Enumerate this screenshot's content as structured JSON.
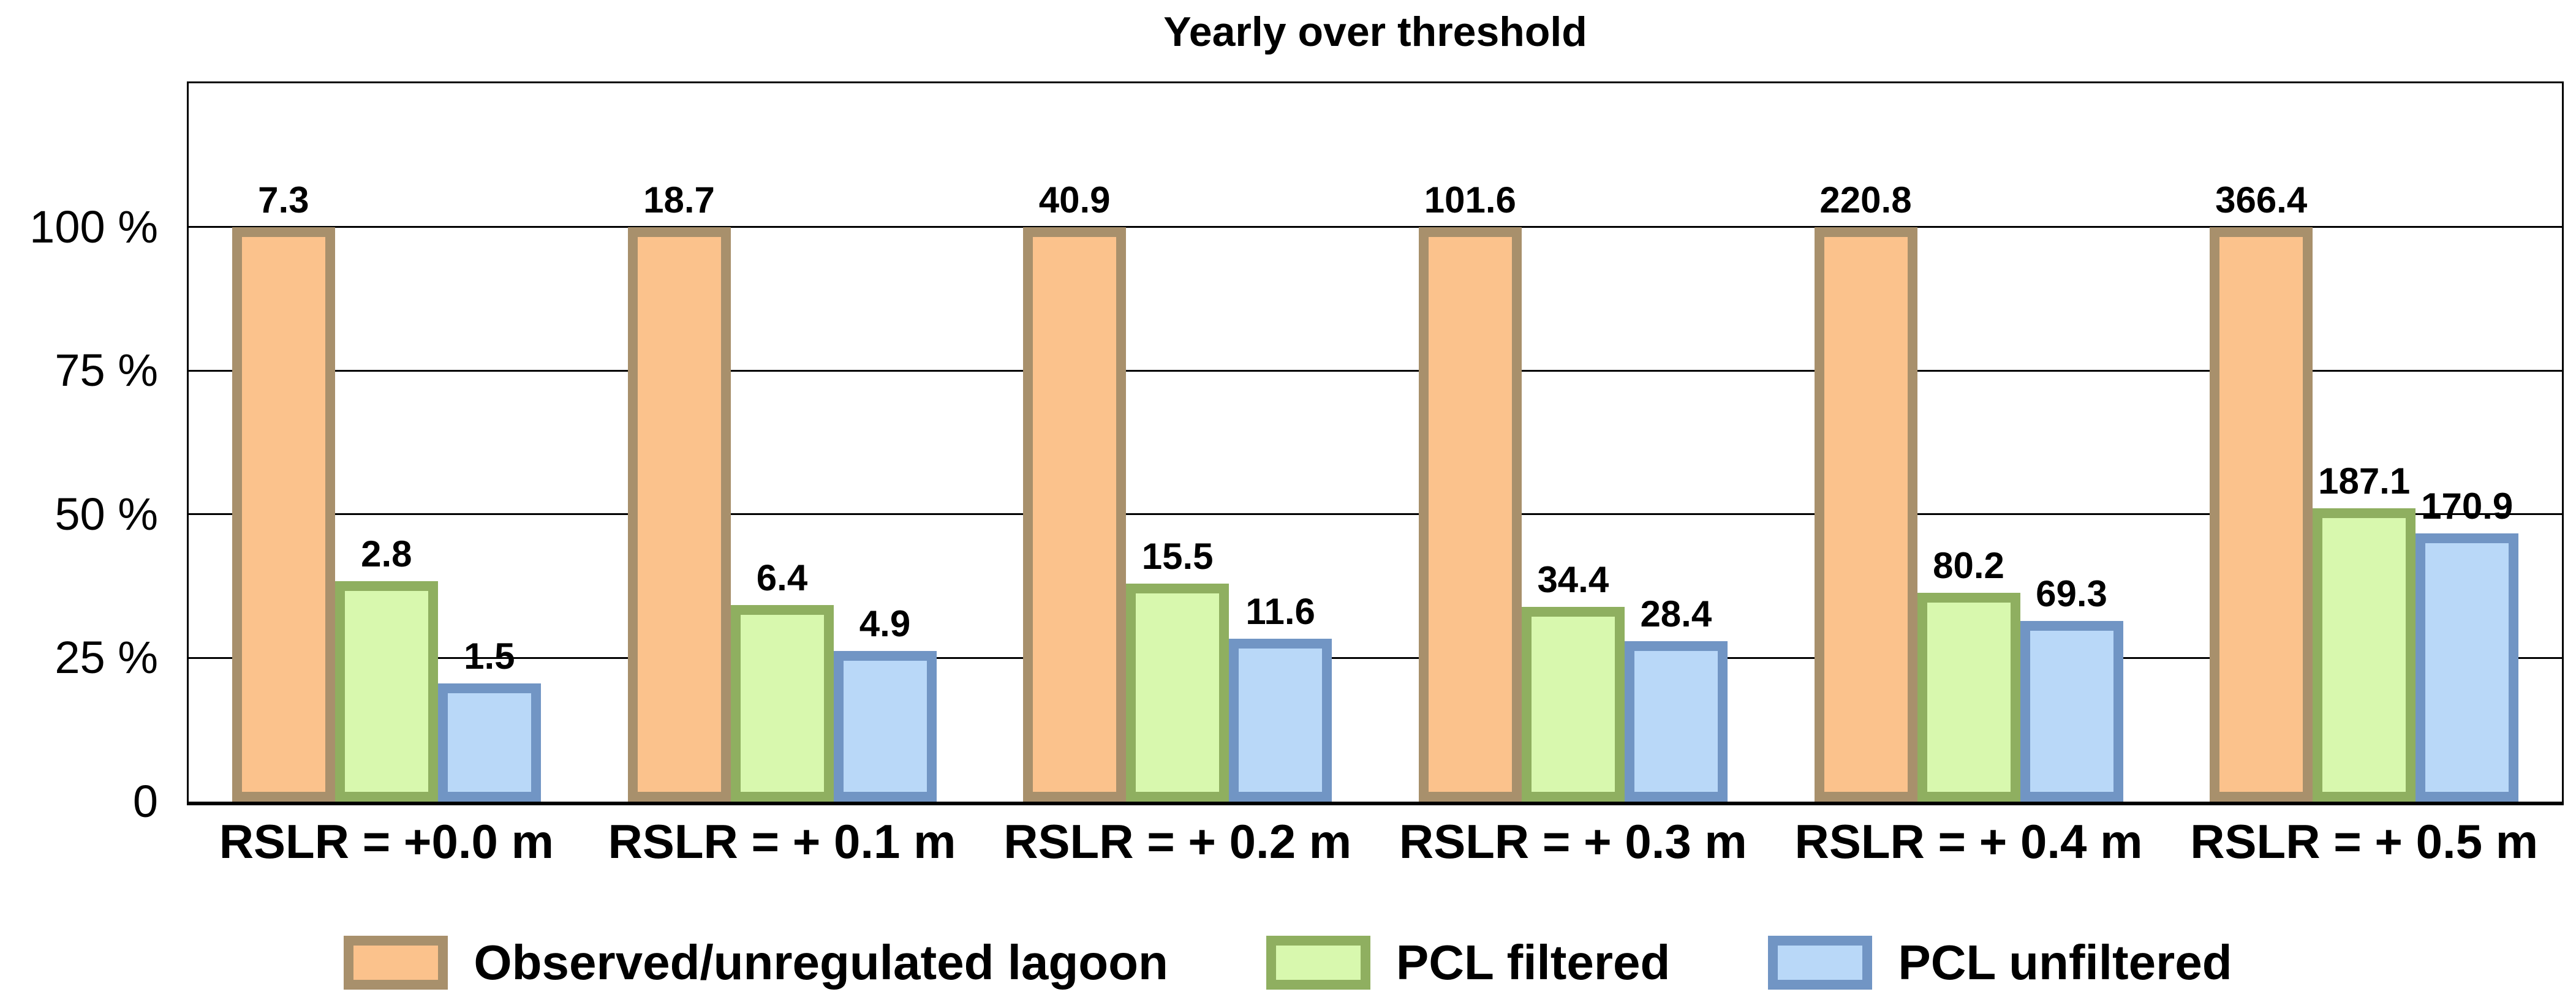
{
  "figure": {
    "background": "#ffffff",
    "text_color": "#000000"
  },
  "chart_data": {
    "type": "bar",
    "title": "Yearly over threshold",
    "categories": [
      "RSLR = +0.0 m",
      "RSLR = + 0.1 m",
      "RSLR = + 0.2 m",
      "RSLR = + 0.3 m",
      "RSLR = + 0.4 m",
      "RSLR = + 0.5 m"
    ],
    "series": [
      {
        "name": "Observed/unregulated lagoon",
        "values": [
          7.3,
          18.7,
          40.9,
          101.6,
          220.8,
          366.4
        ],
        "fill": "#FBC28C",
        "edge": "#A8906C"
      },
      {
        "name": "PCL filtered",
        "values": [
          2.8,
          6.4,
          15.5,
          34.4,
          80.2,
          187.1
        ],
        "fill": "#D8F8AE",
        "edge": "#8FAF60"
      },
      {
        "name": "PCL unfiltered",
        "values": [
          1.5,
          4.9,
          11.6,
          28.4,
          69.3,
          170.9
        ],
        "fill": "#B9D8F8",
        "edge": "#7195C4"
      }
    ],
    "bar_height_rule": "bar height percent = value / first-series value in same group * 100; first series bars always reach the 100% gridline",
    "value_label_format": "one decimal place, shown above each bar",
    "y_axis": {
      "unit": "%",
      "min_pct": 0,
      "max_pct": 125,
      "tick_labels": [
        {
          "pct": 0,
          "label": "0"
        },
        {
          "pct": 25,
          "label": "25 %"
        },
        {
          "pct": 50,
          "label": "50 %"
        },
        {
          "pct": 75,
          "label": "75 %"
        },
        {
          "pct": 100,
          "label": "100 %"
        }
      ],
      "gridlines_pct": [
        25,
        50,
        75,
        100
      ]
    },
    "grid": true,
    "legend_position": "bottom",
    "colors": {
      "gridline": "#000000",
      "plot_border": "#000000"
    }
  }
}
